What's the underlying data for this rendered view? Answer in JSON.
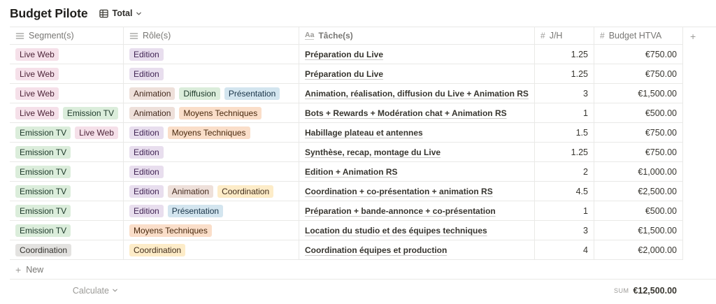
{
  "page": {
    "title": "Budget Pilote"
  },
  "view": {
    "name": "Total"
  },
  "icons": {
    "title_glyph": "Aa",
    "number_glyph": "#",
    "plus_glyph": "+"
  },
  "table": {
    "columns": [
      {
        "label": "Segment(s)",
        "type": "multi-select"
      },
      {
        "label": "Rôle(s)",
        "type": "multi-select"
      },
      {
        "label": "Tâche(s)",
        "type": "title"
      },
      {
        "label": "J/H",
        "type": "number"
      },
      {
        "label": "Budget HTVA",
        "type": "number"
      }
    ],
    "add_column_label": "+",
    "rows": [
      {
        "segments": [
          {
            "label": "Live Web",
            "color": "pink"
          }
        ],
        "roles": [
          {
            "label": "Edition",
            "color": "purple"
          }
        ],
        "task": "Préparation du Live",
        "jh": "1.25",
        "budget": "€750.00"
      },
      {
        "segments": [
          {
            "label": "Live Web",
            "color": "pink"
          }
        ],
        "roles": [
          {
            "label": "Edition",
            "color": "purple"
          }
        ],
        "task": "Préparation du Live",
        "jh": "1.25",
        "budget": "€750.00"
      },
      {
        "segments": [
          {
            "label": "Live Web",
            "color": "pink"
          }
        ],
        "roles": [
          {
            "label": "Animation",
            "color": "brown"
          },
          {
            "label": "Diffusion",
            "color": "green"
          },
          {
            "label": "Présentation",
            "color": "blue"
          }
        ],
        "task": "Animation, réalisation, diffusion du Live + Animation RS",
        "jh": "3",
        "budget": "€1,500.00"
      },
      {
        "segments": [
          {
            "label": "Live Web",
            "color": "pink"
          },
          {
            "label": "Emission TV",
            "color": "green"
          }
        ],
        "roles": [
          {
            "label": "Animation",
            "color": "brown"
          },
          {
            "label": "Moyens Techniques",
            "color": "orange"
          }
        ],
        "task": "Bots + Rewards + Modération chat + Animation RS",
        "jh": "1",
        "budget": "€500.00"
      },
      {
        "segments": [
          {
            "label": "Emission TV",
            "color": "green"
          },
          {
            "label": "Live Web",
            "color": "pink"
          }
        ],
        "roles": [
          {
            "label": "Edition",
            "color": "purple"
          },
          {
            "label": "Moyens Techniques",
            "color": "orange"
          }
        ],
        "task": "Habillage plateau et antennes",
        "jh": "1.5",
        "budget": "€750.00"
      },
      {
        "segments": [
          {
            "label": "Emission TV",
            "color": "green"
          }
        ],
        "roles": [
          {
            "label": "Edition",
            "color": "purple"
          }
        ],
        "task": "Synthèse, recap, montage du Live",
        "jh": "1.25",
        "budget": "€750.00"
      },
      {
        "segments": [
          {
            "label": "Emission TV",
            "color": "green"
          }
        ],
        "roles": [
          {
            "label": "Edition",
            "color": "purple"
          }
        ],
        "task": "Edition + Animation RS",
        "jh": "2",
        "budget": "€1,000.00"
      },
      {
        "segments": [
          {
            "label": "Emission TV",
            "color": "green"
          }
        ],
        "roles": [
          {
            "label": "Edition",
            "color": "purple"
          },
          {
            "label": "Animation",
            "color": "brown"
          },
          {
            "label": "Coordination",
            "color": "yellow"
          }
        ],
        "task": "Coordination + co-présentation + animation RS",
        "jh": "4.5",
        "budget": "€2,500.00"
      },
      {
        "segments": [
          {
            "label": "Emission TV",
            "color": "green"
          }
        ],
        "roles": [
          {
            "label": "Edition",
            "color": "purple"
          },
          {
            "label": "Présentation",
            "color": "blue"
          }
        ],
        "task": "Préparation + bande-annonce + co-présentation",
        "jh": "1",
        "budget": "€500.00"
      },
      {
        "segments": [
          {
            "label": "Emission TV",
            "color": "green"
          }
        ],
        "roles": [
          {
            "label": "Moyens Techniques",
            "color": "orange"
          }
        ],
        "task": "Location du studio et des équipes techniques",
        "jh": "3",
        "budget": "€1,500.00"
      },
      {
        "segments": [
          {
            "label": "Coordination",
            "color": "gray"
          }
        ],
        "roles": [
          {
            "label": "Coordination",
            "color": "yellow"
          }
        ],
        "task": "Coordination équipes et production",
        "jh": "4",
        "budget": "€2,000.00"
      }
    ],
    "new_row_label": "New",
    "footer": {
      "calculate_label": "Calculate",
      "sum_label": "SUM",
      "sum_value": "€12,500.00"
    }
  },
  "colors": {
    "border": "#e9e9e7",
    "header_text": "#787774",
    "tag_palette": {
      "pink": {
        "bg": "#F5E0E9",
        "text": "#4C2337"
      },
      "green": {
        "bg": "#DBEDDB",
        "text": "#1C3829"
      },
      "gray": {
        "bg": "#E3E2E0",
        "text": "#32302C"
      },
      "purple": {
        "bg": "#E8DEEE",
        "text": "#412454"
      },
      "brown": {
        "bg": "#EEE0DA",
        "text": "#442A1E"
      },
      "orange": {
        "bg": "#FADEC9",
        "text": "#49290E"
      },
      "blue": {
        "bg": "#D3E5EF",
        "text": "#183347"
      },
      "yellow": {
        "bg": "#FDECC8",
        "text": "#402C1B"
      }
    }
  }
}
